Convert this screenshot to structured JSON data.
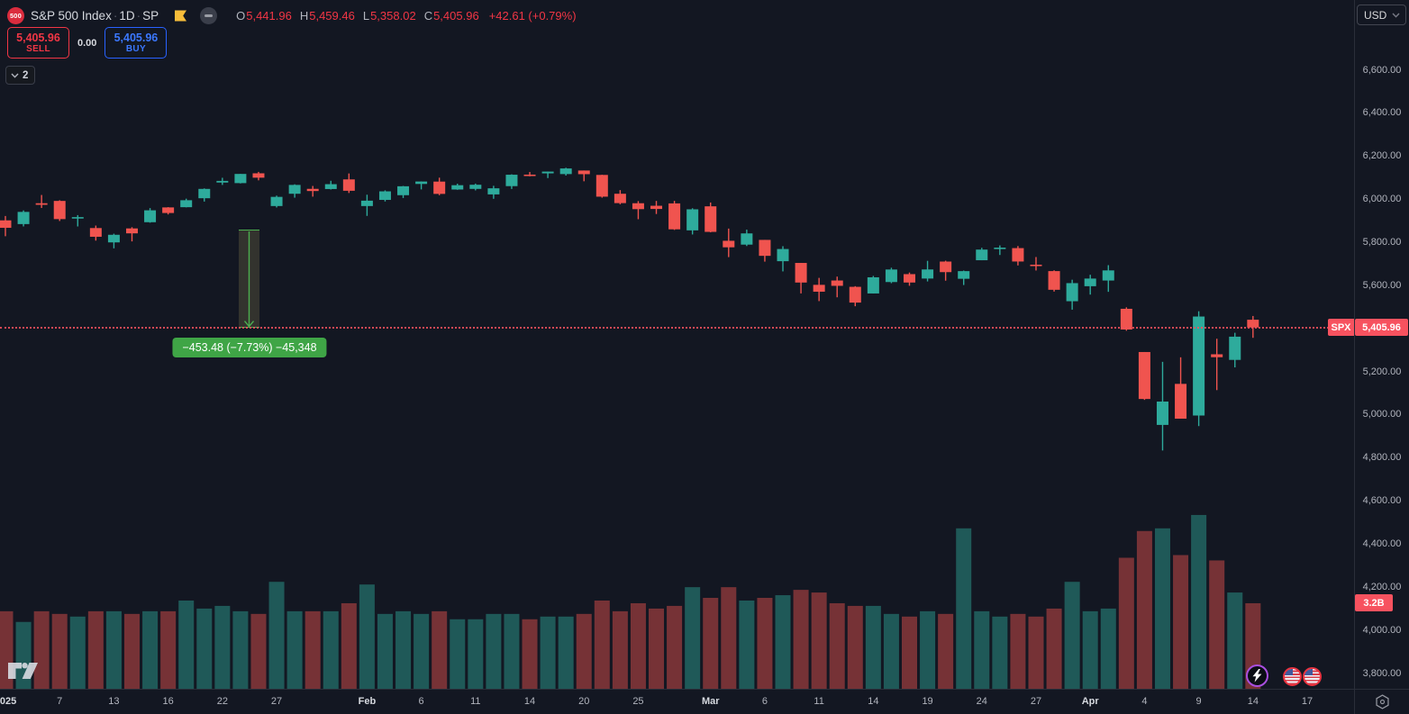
{
  "header": {
    "logo_text": "500",
    "symbol_name": "S&P 500 Index",
    "separator": "·",
    "interval": "1D",
    "exchange": "SP",
    "ohlc": {
      "items": [
        {
          "label": "O",
          "value": "5,441.96"
        },
        {
          "label": "H",
          "value": "5,459.46"
        },
        {
          "label": "L",
          "value": "5,358.02"
        },
        {
          "label": "C",
          "value": "5,405.96"
        }
      ],
      "change": "+42.61 (+0.79%)"
    }
  },
  "trade_panel": {
    "sell": {
      "price": "5,405.96",
      "label": "SELL"
    },
    "spread": "0.00",
    "buy": {
      "price": "5,405.96",
      "label": "BUY"
    }
  },
  "objects_button": {
    "count": "2"
  },
  "measurement": {
    "label": "−453.48 (−7.73%) −45,348",
    "price_from": 5859.44,
    "price_to": 5405.96
  },
  "price_axis": {
    "currency": "USD",
    "symbol_tag": "SPX",
    "price_tag": "5,405.96",
    "volume_tag": "3.2B"
  },
  "chart_data": {
    "type": "candlestick",
    "title": "S&P 500 Index",
    "symbol": "SPX",
    "interval": "1D",
    "exchange": "SP",
    "currency": "USD",
    "last_price": 5405.96,
    "last_change": "+42.61 (+0.79%)",
    "grid": "off",
    "colors": {
      "up": "#2EAB9C",
      "down": "#F0544F",
      "volume_up": "rgba(46,171,156,0.45)",
      "volume_down": "rgba(240,84,79,0.45)",
      "price_line": "#F7525F",
      "measure": "#4CAF50"
    },
    "y_axis": {
      "price_at_top": 6926,
      "price_at_bottom": 3729,
      "ticks": [
        6600,
        6400,
        6200,
        6000,
        5800,
        5600,
        5200,
        5000,
        4800,
        4600,
        4400,
        4200,
        4000,
        3800
      ]
    },
    "volume_axis": {
      "last_volume_billions": 3.2
    },
    "x_labels": [
      {
        "t": "2025",
        "i": 0,
        "m": true
      },
      {
        "t": "7",
        "i": 3
      },
      {
        "t": "13",
        "i": 6
      },
      {
        "t": "16",
        "i": 9
      },
      {
        "t": "22",
        "i": 12
      },
      {
        "t": "27",
        "i": 15
      },
      {
        "t": "Feb",
        "i": 20,
        "m": true
      },
      {
        "t": "6",
        "i": 23
      },
      {
        "t": "11",
        "i": 26
      },
      {
        "t": "14",
        "i": 29
      },
      {
        "t": "20",
        "i": 32
      },
      {
        "t": "25",
        "i": 35
      },
      {
        "t": "Mar",
        "i": 39,
        "m": true
      },
      {
        "t": "6",
        "i": 42
      },
      {
        "t": "11",
        "i": 45
      },
      {
        "t": "14",
        "i": 48
      },
      {
        "t": "19",
        "i": 51
      },
      {
        "t": "24",
        "i": 54
      },
      {
        "t": "27",
        "i": 57
      },
      {
        "t": "Apr",
        "i": 60,
        "m": true
      },
      {
        "t": "4",
        "i": 63
      },
      {
        "t": "9",
        "i": 66
      },
      {
        "t": "14",
        "i": 69
      },
      {
        "t": "17",
        "i": 72
      }
    ],
    "columns": [
      "date",
      "open",
      "high",
      "low",
      "close",
      "volume_billions"
    ],
    "candles": [
      [
        "Jan 2",
        5903.26,
        5923.51,
        5829.53,
        5868.55,
        2.9
      ],
      [
        "Jan 3",
        5885.92,
        5949.34,
        5875.1,
        5942.47,
        2.5
      ],
      [
        "Jan 6",
        5982.73,
        6021.05,
        5960.82,
        5975.38,
        2.9
      ],
      [
        "Jan 7",
        5993.44,
        5996.48,
        5900.27,
        5909.03,
        2.8
      ],
      [
        "Jan 8",
        5912.27,
        5927.58,
        5874.9,
        5918.25,
        2.7
      ],
      [
        "Jan 10",
        5867.48,
        5879.03,
        5809.19,
        5827.04,
        2.9
      ],
      [
        "Jan 13",
        5800.95,
        5841.25,
        5773.31,
        5836.22,
        2.9
      ],
      [
        "Jan 14",
        5865.77,
        5871.4,
        5805.53,
        5842.91,
        2.8
      ],
      [
        "Jan 15",
        5894.61,
        5960.16,
        5892.31,
        5949.91,
        2.9
      ],
      [
        "Jan 16",
        5963.25,
        5964.61,
        5930.58,
        5937.34,
        2.9
      ],
      [
        "Jan 17",
        5964.3,
        6003.84,
        5963.54,
        5996.66,
        3.3
      ],
      [
        "Jan 21",
        6005.88,
        6051.5,
        5990.42,
        6049.24,
        3.0
      ],
      [
        "Jan 22",
        6078.7,
        6100.81,
        6067.7,
        6086.37,
        3.1
      ],
      [
        "Jan 23",
        6076.06,
        6118.72,
        6074.52,
        6118.71,
        2.9
      ],
      [
        "Jan 24",
        6121.61,
        6128.18,
        6088.96,
        6101.24,
        2.8
      ],
      [
        "Jan 27",
        5969.65,
        6017.98,
        5962.92,
        6012.28,
        4.0
      ],
      [
        "Jan 28",
        6026.69,
        6070.52,
        6008.56,
        6067.7,
        2.9
      ],
      [
        "Jan 29",
        6049.5,
        6062.85,
        6013.29,
        6039.31,
        2.9
      ],
      [
        "Jan 30",
        6048.61,
        6086.95,
        6046.33,
        6071.17,
        2.9
      ],
      [
        "Jan 31",
        6093.33,
        6120.91,
        6030.26,
        6040.53,
        3.2
      ],
      [
        "Feb 3",
        5969.65,
        6022.21,
        5923.93,
        5994.57,
        3.9
      ],
      [
        "Feb 4",
        5998.14,
        6042.48,
        5990.87,
        6037.88,
        2.8
      ],
      [
        "Feb 5",
        6020.03,
        6062.85,
        6007.06,
        6061.48,
        2.9
      ],
      [
        "Feb 6",
        6072.22,
        6084.0,
        6046.83,
        6083.57,
        2.8
      ],
      [
        "Feb 7",
        6083.13,
        6101.28,
        6019.96,
        6025.99,
        2.9
      ],
      [
        "Feb 10",
        6046.36,
        6073.37,
        6044.84,
        6066.44,
        2.6
      ],
      [
        "Feb 11",
        6049.23,
        6073.79,
        6042.36,
        6068.5,
        2.6
      ],
      [
        "Feb 12",
        6023.67,
        6063.5,
        6003.25,
        6051.97,
        2.8
      ],
      [
        "Feb 13",
        6062.1,
        6116.91,
        6049.01,
        6115.07,
        2.8
      ],
      [
        "Feb 14",
        6115.48,
        6127.47,
        6107.62,
        6114.63,
        2.6
      ],
      [
        "Feb 18",
        6121.36,
        6129.63,
        6099.51,
        6129.58,
        2.7
      ],
      [
        "Feb 19",
        6117.98,
        6147.43,
        6111.15,
        6144.15,
        2.7
      ],
      [
        "Feb 20",
        6134.5,
        6134.5,
        6084.59,
        6117.52,
        2.8
      ],
      [
        "Feb 21",
        6114.1,
        6114.82,
        6008.56,
        6013.13,
        3.3
      ],
      [
        "Feb 24",
        6026.69,
        6043.65,
        5977.83,
        5983.25,
        2.9
      ],
      [
        "Feb 25",
        5982.73,
        5992.64,
        5908.49,
        5955.25,
        3.2
      ],
      [
        "Feb 26",
        5970.94,
        5993.36,
        5932.69,
        5956.06,
        3.0
      ],
      [
        "Feb 27",
        5981.96,
        5993.69,
        5858.78,
        5861.57,
        3.1
      ],
      [
        "Feb 28",
        5856.75,
        5959.4,
        5837.66,
        5954.5,
        3.8
      ],
      [
        "Mar 3",
        5968.33,
        5986.09,
        5847.66,
        5849.72,
        3.4
      ],
      [
        "Mar 4",
        5808.39,
        5865.09,
        5732.59,
        5778.15,
        3.8
      ],
      [
        "Mar 5",
        5790.58,
        5860.2,
        5784.05,
        5842.63,
        3.3
      ],
      [
        "Mar 6",
        5812.57,
        5812.57,
        5711.64,
        5738.52,
        3.4
      ],
      [
        "Mar 7",
        5713.65,
        5783.21,
        5666.29,
        5770.2,
        3.5
      ],
      [
        "Mar 10",
        5705.6,
        5705.6,
        5564.02,
        5614.56,
        3.7
      ],
      [
        "Mar 11",
        5603.95,
        5636.27,
        5528.41,
        5572.07,
        3.6
      ],
      [
        "Mar 12",
        5624.07,
        5642.16,
        5546.09,
        5599.3,
        3.2
      ],
      [
        "Mar 13",
        5594.72,
        5597.72,
        5504.65,
        5521.52,
        3.1
      ],
      [
        "Mar 14",
        5563.85,
        5645.27,
        5563.85,
        5638.94,
        3.1
      ],
      [
        "Mar 17",
        5616.85,
        5683.31,
        5611.6,
        5675.12,
        2.8
      ],
      [
        "Mar 18",
        5653.6,
        5661.19,
        5599.6,
        5614.66,
        2.7
      ],
      [
        "Mar 19",
        5633.1,
        5715.33,
        5619.66,
        5675.29,
        2.9
      ],
      [
        "Mar 20",
        5711.99,
        5715.93,
        5623.22,
        5662.89,
        2.8
      ],
      [
        "Mar 21",
        5632.01,
        5670.14,
        5603.11,
        5667.56,
        6.0
      ],
      [
        "Mar 24",
        5718.09,
        5775.88,
        5718.09,
        5767.57,
        2.9
      ],
      [
        "Mar 25",
        5776.0,
        5786.95,
        5742.46,
        5776.65,
        2.7
      ],
      [
        "Mar 26",
        5774.39,
        5783.95,
        5693.92,
        5712.2,
        2.8
      ],
      [
        "Mar 27",
        5697.49,
        5732.97,
        5670.52,
        5693.31,
        2.7
      ],
      [
        "Mar 28",
        5667.73,
        5671.3,
        5572.71,
        5580.94,
        3.0
      ],
      [
        "Mar 31",
        5527.91,
        5627.67,
        5488.73,
        5611.85,
        4.0
      ],
      [
        "Apr 1",
        5597.53,
        5650.7,
        5558.64,
        5633.07,
        2.9
      ],
      [
        "Apr 2",
        5623.93,
        5695.31,
        5571.48,
        5670.97,
        3.0
      ],
      [
        "Apr 3",
        5492.74,
        5499.53,
        5390.9,
        5396.52,
        4.9
      ],
      [
        "Apr 4",
        5292.14,
        5292.14,
        5069.9,
        5074.08,
        5.9
      ],
      [
        "Apr 7",
        4953.79,
        5246.57,
        4835.04,
        5062.25,
        6.0
      ],
      [
        "Apr 8",
        5144.28,
        5267.6,
        4982.77,
        4982.77,
        5.0
      ],
      [
        "Apr 9",
        4997.36,
        5481.34,
        4948.33,
        5456.9,
        6.5
      ],
      [
        "Apr 10",
        5281.6,
        5353.73,
        5115.27,
        5268.05,
        4.8
      ],
      [
        "Apr 11",
        5255.56,
        5381.45,
        5220.79,
        5363.36,
        3.6
      ],
      [
        "Apr 14",
        5441.96,
        5459.46,
        5358.02,
        5405.96,
        3.2
      ]
    ]
  }
}
